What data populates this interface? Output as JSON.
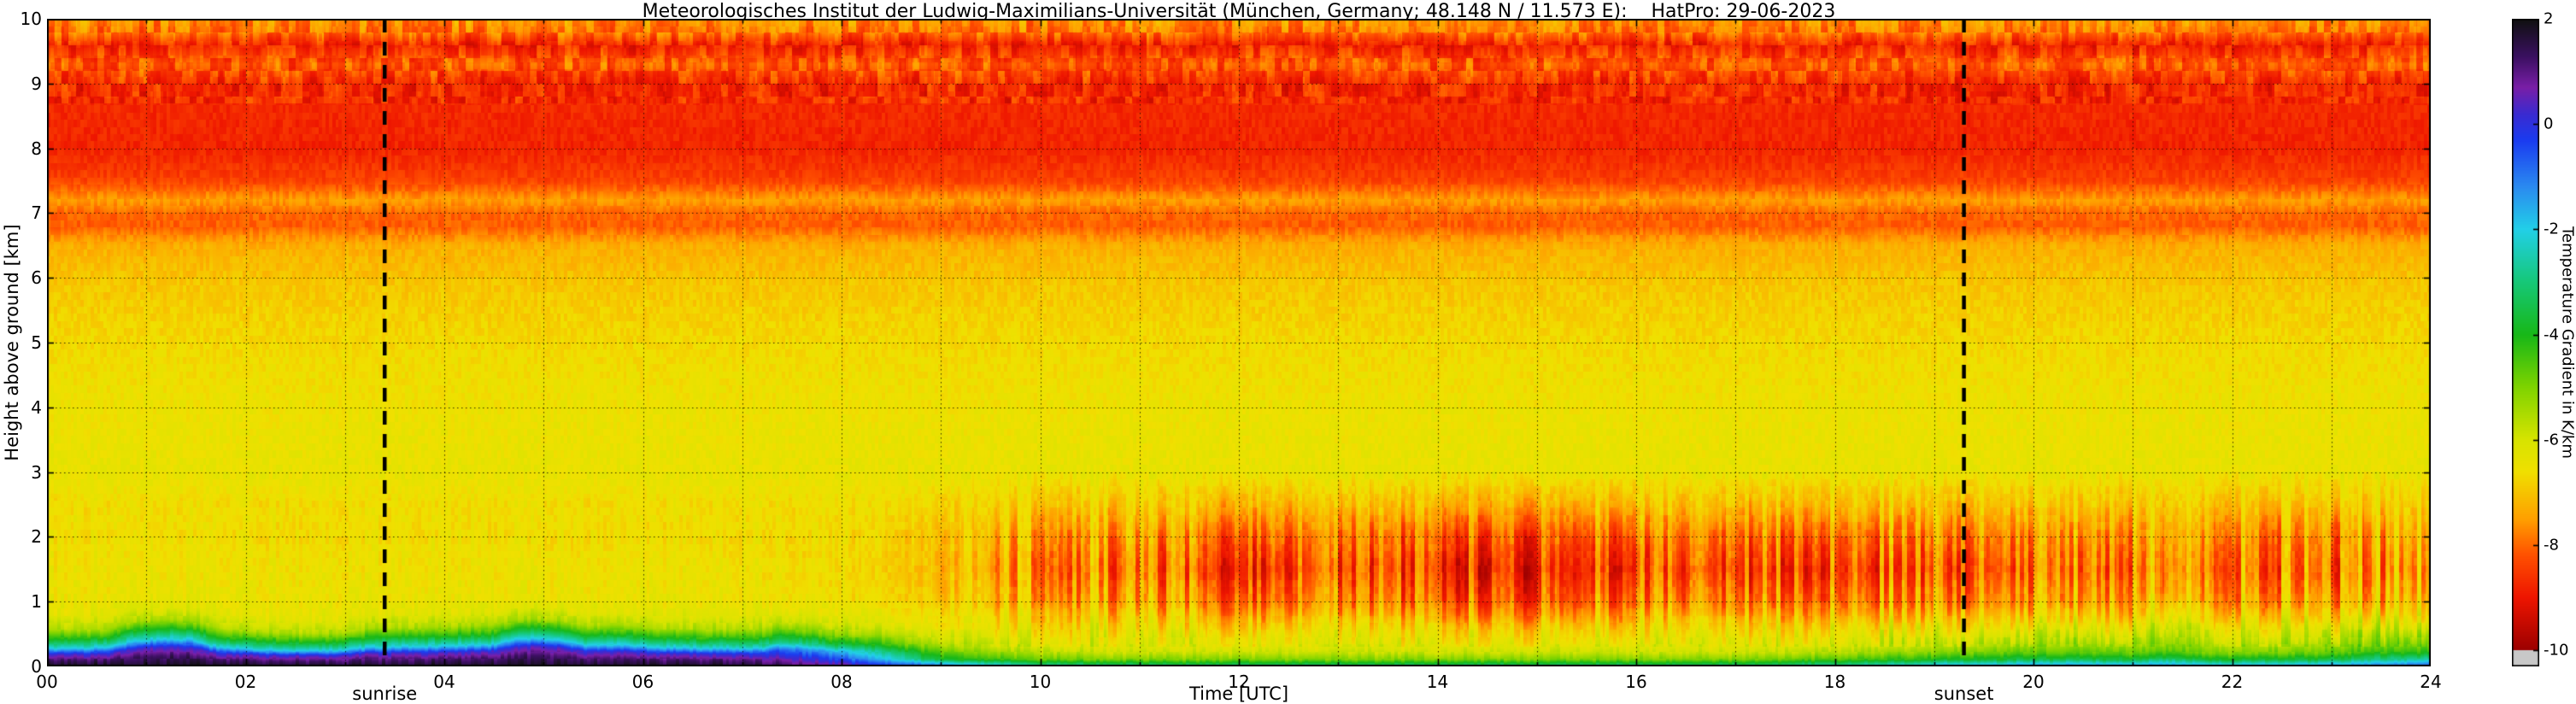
{
  "title": "Meteorologisches Institut der Ludwig-Maximilians-Universität (München, Germany; 48.148 N / 11.573 E):    HatPro: 29-06-2023",
  "axes": {
    "x_label": "Time [UTC]",
    "y_label": "Height above ground [km]",
    "x_ticks": [
      "00",
      "02",
      "04",
      "06",
      "08",
      "10",
      "12",
      "14",
      "16",
      "18",
      "20",
      "22",
      "24"
    ],
    "x_tick_hours": [
      0,
      2,
      4,
      6,
      8,
      10,
      12,
      14,
      16,
      18,
      20,
      22,
      24
    ],
    "y_ticks": [
      "0",
      "1",
      "2",
      "3",
      "4",
      "5",
      "6",
      "7",
      "8",
      "9",
      "10"
    ],
    "y_tick_km": [
      0,
      1,
      2,
      3,
      4,
      5,
      6,
      7,
      8,
      9,
      10
    ]
  },
  "annotations": {
    "sunrise_label": "sunrise",
    "sunrise_utc": 3.4,
    "sunset_label": "sunset",
    "sunset_utc": 19.3
  },
  "colorbar": {
    "label": "Temperature Gradient in K/km",
    "tick_labels": [
      "2",
      "0",
      "-2",
      "-4",
      "-6",
      "-8",
      "-10"
    ],
    "tick_values": [
      2,
      0,
      -2,
      -4,
      -6,
      -8,
      -10
    ],
    "vmin": -10,
    "vmax": 2,
    "under_color": "#c8c8c8",
    "stops": [
      [
        2.0,
        "#101010"
      ],
      [
        1.3,
        "#3a1060"
      ],
      [
        0.7,
        "#7a1fa8"
      ],
      [
        0.2,
        "#3b2bd1"
      ],
      [
        -0.3,
        "#1b3cf0"
      ],
      [
        -1.2,
        "#2b8cf0"
      ],
      [
        -2.0,
        "#22d0e8"
      ],
      [
        -3.0,
        "#16c878"
      ],
      [
        -4.0,
        "#18b818"
      ],
      [
        -5.0,
        "#80d400"
      ],
      [
        -6.0,
        "#d8e400"
      ],
      [
        -6.6,
        "#f0e000"
      ],
      [
        -7.5,
        "#ffa000"
      ],
      [
        -8.2,
        "#ff5000"
      ],
      [
        -9.0,
        "#ee1500"
      ],
      [
        -10.0,
        "#9c0000"
      ]
    ]
  },
  "chart_data": {
    "type": "heatmap",
    "title": "HatPro temperature gradient quicklook 29-06-2023",
    "xlabel": "Time [UTC]",
    "ylabel": "Height above ground [km]",
    "value_unit": "K/km",
    "xlim": [
      0,
      24
    ],
    "ylim": [
      0,
      10
    ],
    "clim": [
      -10,
      2
    ],
    "grid": "dotted, every 1 h and every 1 km",
    "x_hours": [
      0,
      1,
      2,
      3,
      4,
      5,
      6,
      7,
      8,
      9,
      10,
      11,
      12,
      13,
      14,
      15,
      16,
      17,
      18,
      19,
      20,
      21,
      22,
      23,
      24
    ],
    "height_km": [
      0,
      0.1,
      0.2,
      0.3,
      0.45,
      0.6,
      0.8,
      1,
      1.5,
      2,
      2.5,
      3,
      4,
      5,
      6,
      6.5,
      6.8,
      7,
      7.2,
      7.5,
      8,
      9,
      9.3,
      9.6,
      9.8,
      10
    ],
    "values": [
      [
        1.8,
        1.8,
        1.8,
        1.8,
        1.8,
        1.8,
        1.8,
        1.7,
        0.8,
        -0.8,
        -2.5,
        -3.0,
        -3.0,
        -3.0,
        -3.0,
        -3.0,
        -3.0,
        -3.0,
        -2.5,
        -1.5,
        -1.2,
        -1.2,
        -1.5,
        -1.2,
        -0.5
      ],
      [
        1.2,
        1.2,
        1.2,
        1.2,
        1.2,
        1.2,
        1.2,
        1.1,
        -0.6,
        -3.8,
        -4.8,
        -5.0,
        -5.0,
        -5.0,
        -5.0,
        -5.0,
        -5.0,
        -5.0,
        -4.5,
        -4.0,
        -3.5,
        -3.5,
        -3.8,
        -3.5,
        -2.5
      ],
      [
        0.2,
        0.2,
        0.2,
        0.2,
        0.2,
        0.2,
        0.2,
        0.1,
        -1.8,
        -4.6,
        -5.6,
        -5.8,
        -5.8,
        -5.8,
        -5.8,
        -5.8,
        -5.8,
        -5.8,
        -5.5,
        -5.0,
        -4.6,
        -4.6,
        -5.0,
        -4.6,
        -4.0
      ],
      [
        -2.0,
        -2.0,
        -2.0,
        -2.0,
        -2.0,
        -2.0,
        -2.0,
        -2.1,
        -3.6,
        -5.4,
        -6.1,
        -6.2,
        -6.2,
        -6.2,
        -6.2,
        -6.2,
        -6.2,
        -6.2,
        -6.0,
        -5.6,
        -5.2,
        -5.2,
        -5.5,
        -5.2,
        -4.6
      ],
      [
        -4.0,
        -4.0,
        -4.0,
        -4.0,
        -4.0,
        -4.0,
        -4.0,
        -4.1,
        -5.2,
        -6.0,
        -6.4,
        -6.4,
        -6.4,
        -6.5,
        -6.5,
        -6.5,
        -6.5,
        -6.4,
        -6.3,
        -6.0,
        -5.7,
        -5.7,
        -6.0,
        -5.7,
        -5.3
      ],
      [
        -5.5,
        -5.5,
        -5.5,
        -5.5,
        -5.5,
        -5.5,
        -5.5,
        -5.5,
        -6.0,
        -6.4,
        -6.6,
        -6.7,
        -6.8,
        -6.8,
        -6.8,
        -6.8,
        -6.8,
        -6.7,
        -6.6,
        -6.4,
        -6.2,
        -6.2,
        -6.3,
        -6.2,
        -6.0
      ],
      [
        -6.2,
        -6.2,
        -6.2,
        -6.2,
        -6.2,
        -6.2,
        -6.2,
        -6.2,
        -6.4,
        -6.6,
        -6.9,
        -7.1,
        -7.3,
        -7.4,
        -7.5,
        -7.5,
        -7.4,
        -7.3,
        -7.2,
        -7.0,
        -6.8,
        -6.8,
        -6.9,
        -6.9,
        -6.6
      ],
      [
        -6.4,
        -6.4,
        -6.4,
        -6.4,
        -6.4,
        -6.4,
        -6.4,
        -6.4,
        -6.6,
        -6.9,
        -7.3,
        -7.6,
        -7.8,
        -7.9,
        -8.0,
        -8.0,
        -7.9,
        -7.8,
        -7.7,
        -7.5,
        -7.3,
        -7.2,
        -7.4,
        -7.4,
        -7.0
      ],
      [
        -6.5,
        -6.5,
        -6.5,
        -6.5,
        -6.5,
        -6.5,
        -6.5,
        -6.5,
        -6.7,
        -7.1,
        -7.7,
        -8.1,
        -8.4,
        -8.5,
        -8.6,
        -8.6,
        -8.5,
        -8.4,
        -8.3,
        -8.0,
        -7.8,
        -7.7,
        -7.9,
        -7.9,
        -7.4
      ],
      [
        -6.6,
        -6.6,
        -6.6,
        -6.6,
        -6.6,
        -6.6,
        -6.6,
        -6.6,
        -6.7,
        -7.0,
        -7.4,
        -7.7,
        -7.9,
        -8.0,
        -8.1,
        -8.1,
        -8.0,
        -7.9,
        -7.8,
        -7.6,
        -7.5,
        -7.4,
        -7.6,
        -7.6,
        -7.2
      ],
      [
        -6.6,
        -6.6,
        -6.6,
        -6.6,
        -6.6,
        -6.6,
        -6.6,
        -6.6,
        -6.6,
        -6.7,
        -6.9,
        -7.0,
        -7.1,
        -7.2,
        -7.2,
        -7.2,
        -7.1,
        -7.1,
        -7.0,
        -7.0,
        -6.9,
        -6.9,
        -7.0,
        -7.0,
        -6.8
      ],
      -6.4,
      -6.5,
      -6.7,
      -7.0,
      -7.3,
      -8.1,
      -8.0,
      -7.5,
      -8.4,
      -8.8,
      -8.7,
      -8.1,
      -8.8,
      -7.9,
      -7.6
    ]
  }
}
